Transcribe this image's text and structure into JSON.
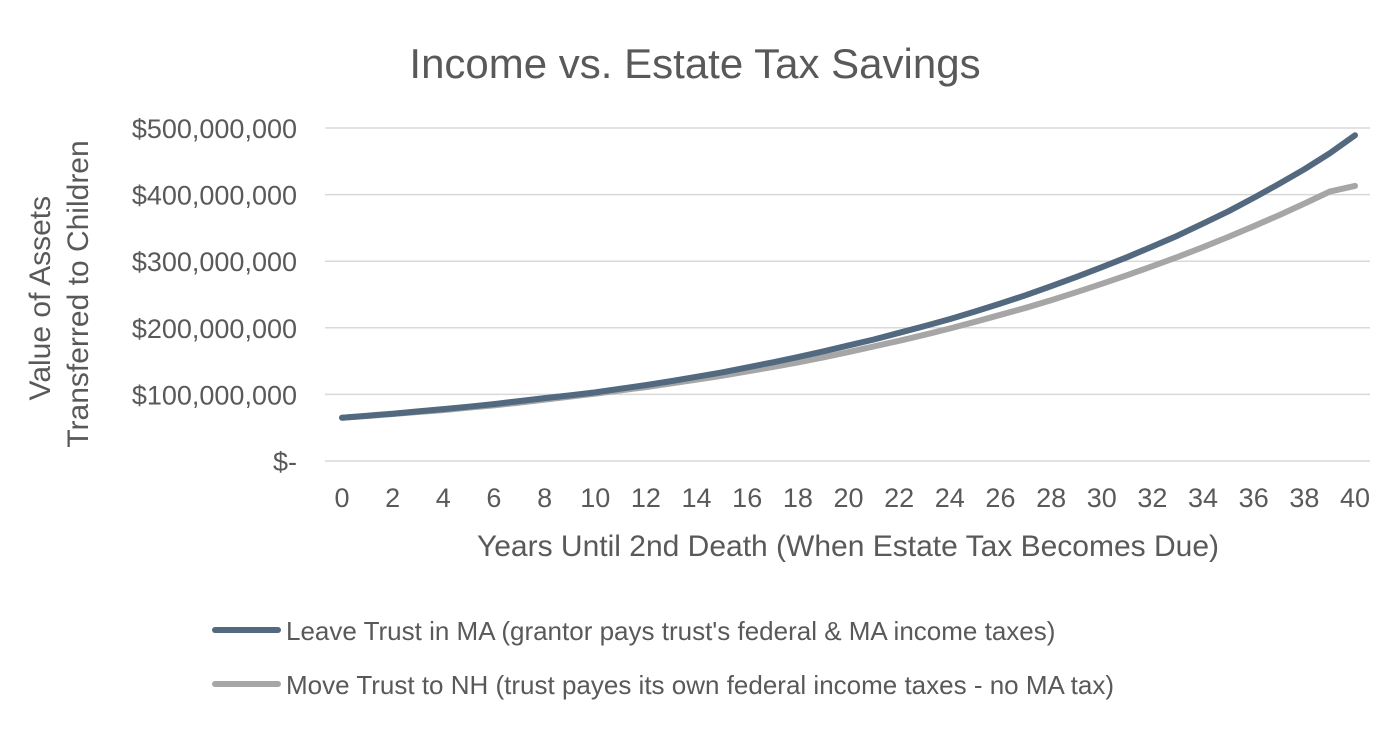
{
  "chart_data": {
    "type": "line",
    "title": "Income vs. Estate Tax Savings",
    "xlabel": "Years Until 2nd Death (When Estate Tax Becomes Due)",
    "ylabel_lines": [
      "Value of Assets",
      "Transferred to Children"
    ],
    "x": [
      0,
      1,
      2,
      3,
      4,
      5,
      6,
      7,
      8,
      9,
      10,
      11,
      12,
      13,
      14,
      15,
      16,
      17,
      18,
      19,
      20,
      21,
      22,
      23,
      24,
      25,
      26,
      27,
      28,
      29,
      30,
      31,
      32,
      33,
      34,
      35,
      36,
      37,
      38,
      39,
      40
    ],
    "x_tick_labels": [
      "0",
      "2",
      "4",
      "6",
      "8",
      "10",
      "12",
      "14",
      "16",
      "18",
      "20",
      "22",
      "24",
      "26",
      "28",
      "30",
      "32",
      "34",
      "36",
      "38",
      "40"
    ],
    "y_tick_labels": [
      "$-",
      "$100,000,000",
      "$200,000,000",
      "$300,000,000",
      "$400,000,000",
      "$500,000,000"
    ],
    "ylim": [
      0,
      500000000
    ],
    "grid": true,
    "legend_position": "bottom",
    "series": [
      {
        "name": "Leave Trust in MA (grantor pays trust's federal & MA income taxes)",
        "color": "#52697f",
        "values": [
          65000000,
          68000000,
          71000000,
          74500000,
          78000000,
          81500000,
          85500000,
          90000000,
          94500000,
          98500000,
          103000000,
          108500000,
          114000000,
          120000000,
          126500000,
          133000000,
          140500000,
          148000000,
          156000000,
          164500000,
          173500000,
          182500000,
          192500000,
          202500000,
          213000000,
          224500000,
          236500000,
          249000000,
          262500000,
          276500000,
          291000000,
          306000000,
          322000000,
          338500000,
          356500000,
          375000000,
          395000000,
          416000000,
          438000000,
          462000000,
          489000000
        ]
      },
      {
        "name": "Move Trust to NH (trust payes its own federal income taxes - no MA tax)",
        "color": "#a6a6a6",
        "values": [
          65000000,
          67500000,
          70500000,
          73500000,
          76500000,
          80000000,
          83500000,
          87500000,
          92000000,
          96500000,
          101000000,
          106000000,
          111000000,
          116500000,
          122000000,
          128000000,
          134500000,
          141000000,
          148000000,
          155500000,
          163500000,
          172000000,
          180500000,
          189500000,
          199000000,
          209000000,
          219500000,
          230000000,
          241500000,
          253500000,
          266000000,
          279000000,
          292500000,
          306500000,
          321000000,
          336500000,
          352500000,
          369000000,
          386500000,
          404500000,
          413000000
        ]
      }
    ]
  }
}
